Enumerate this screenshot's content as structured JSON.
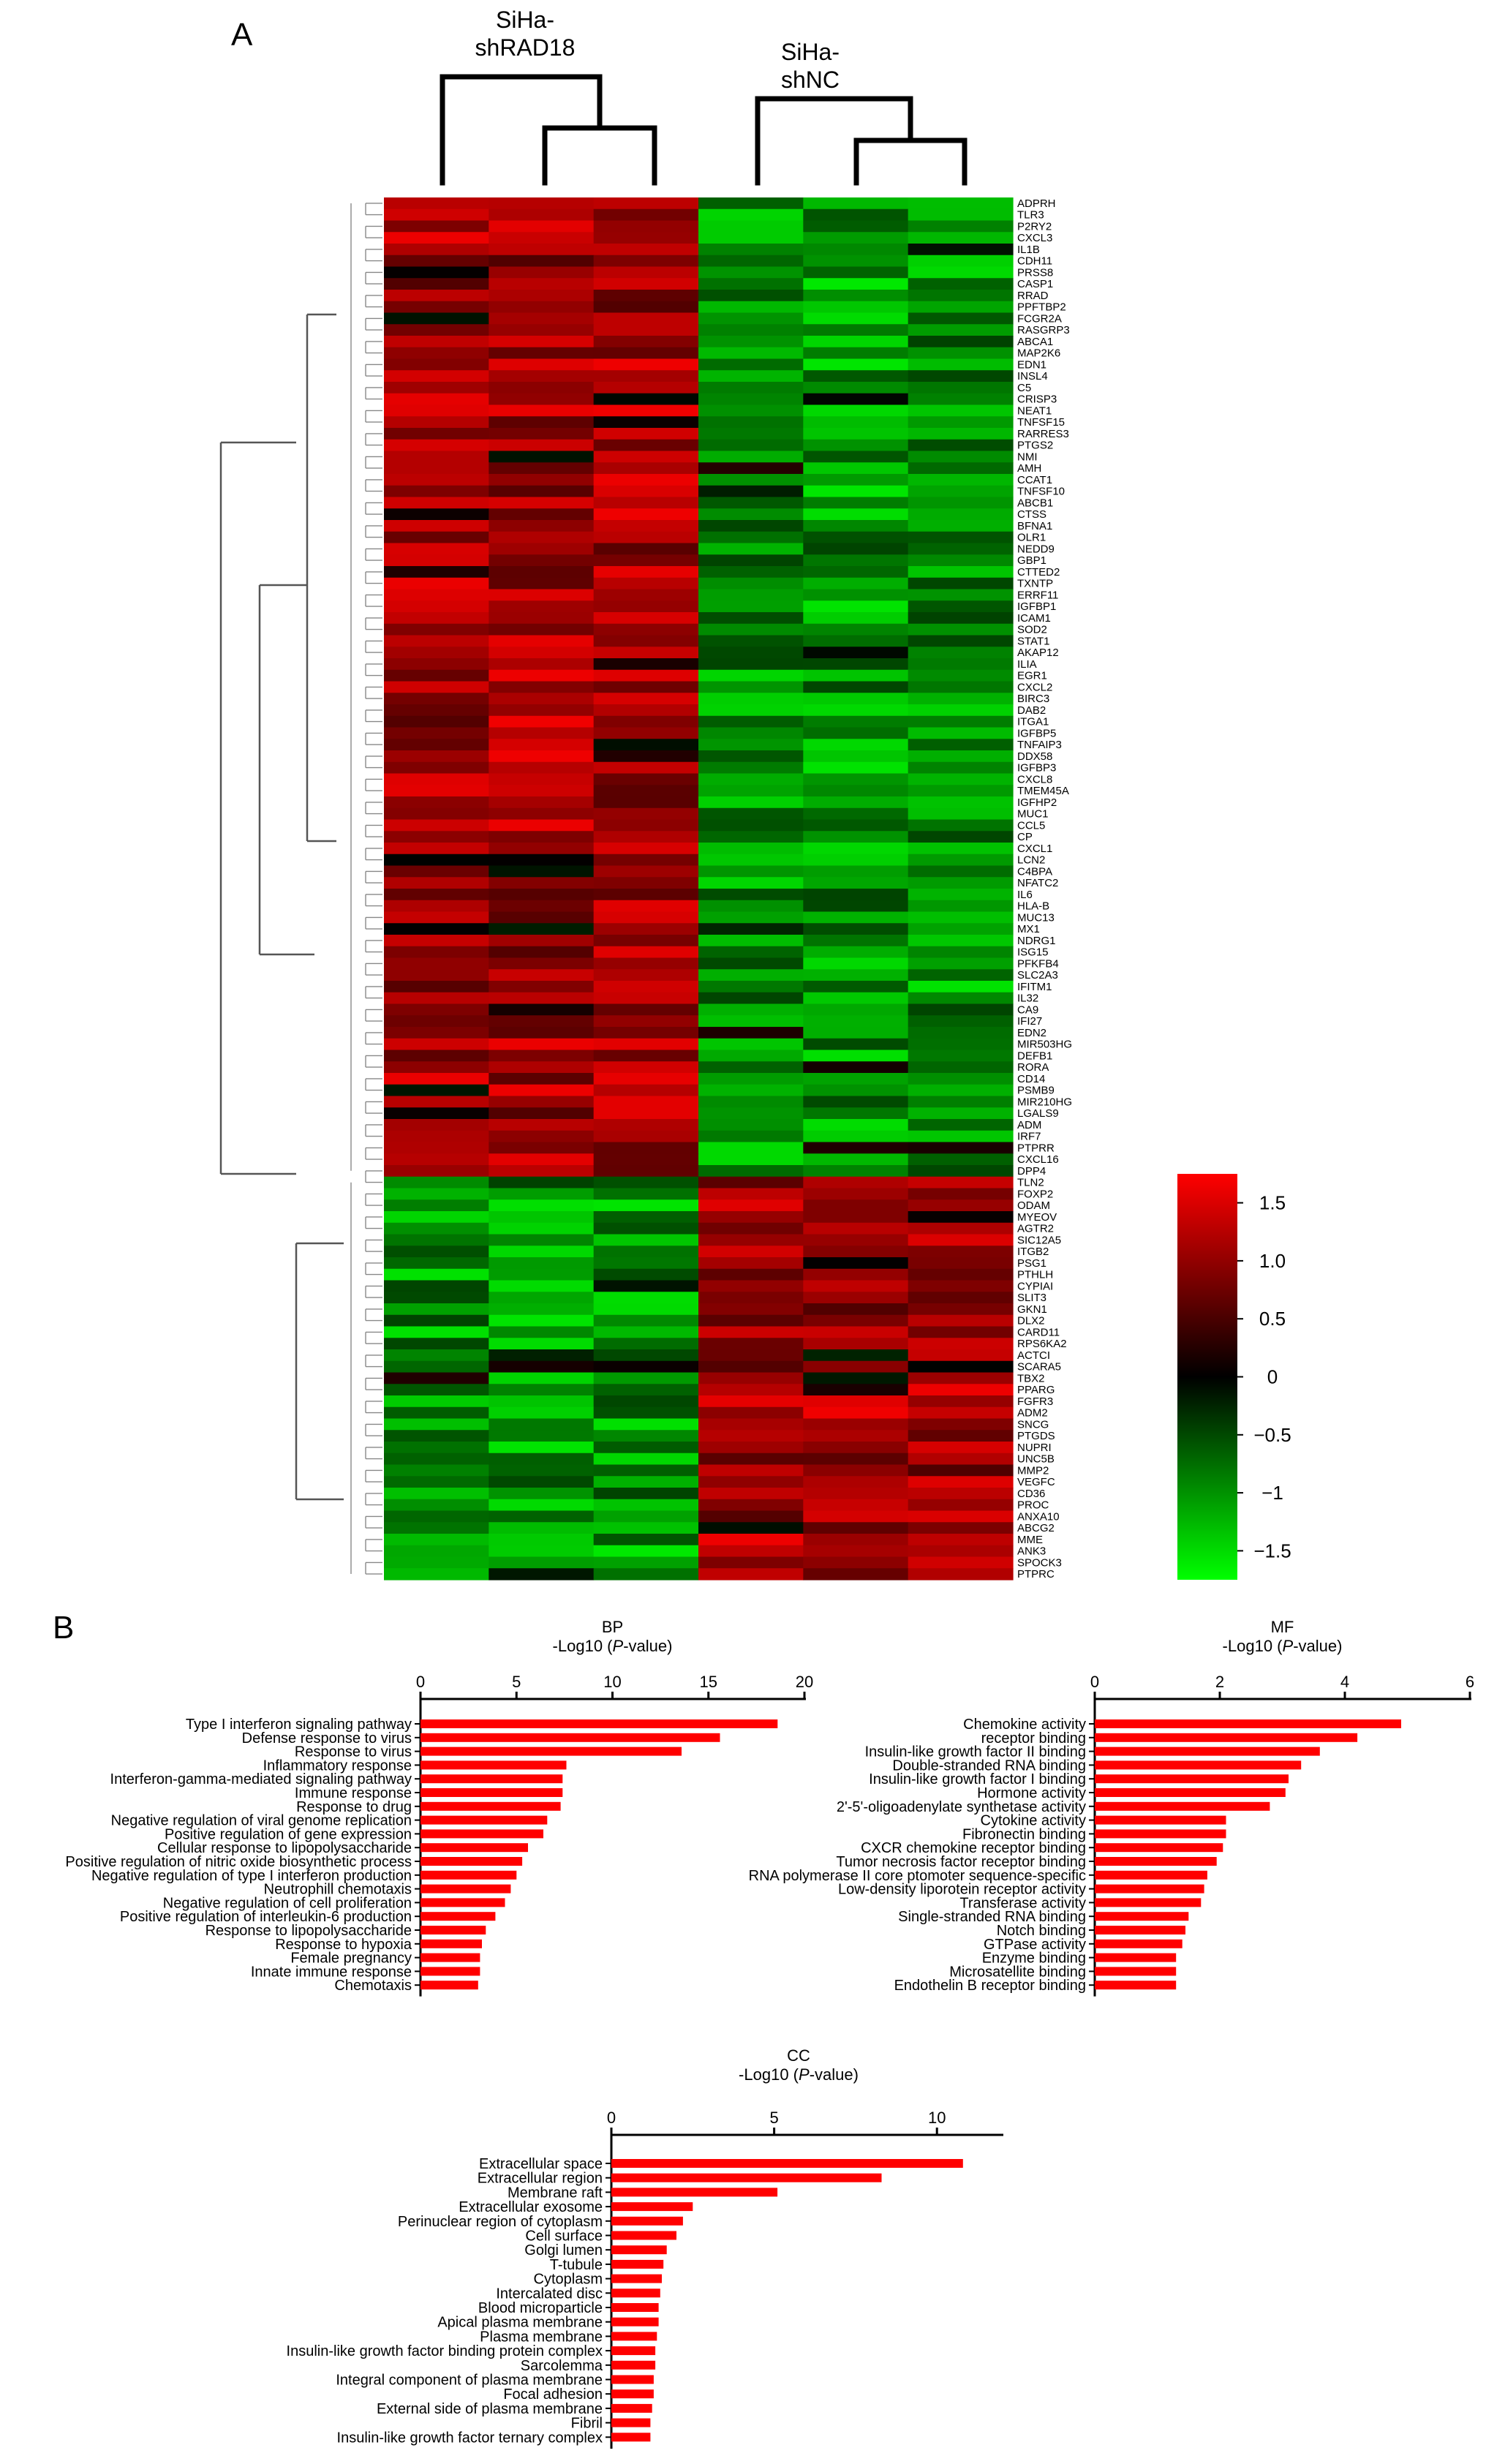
{
  "panel_a": {
    "label": "A",
    "chart_data": {
      "type": "heatmap",
      "group_labels": [
        [
          "SiHa-",
          "shRAD18"
        ],
        [
          "SiHa-",
          "shNC"
        ]
      ],
      "rows": [
        "ADPRH",
        "TLR3",
        "P2RY2",
        "CXCL3",
        "IL1B",
        "CDH11",
        "PRSS8",
        "CASP1",
        "RRAD",
        "PPFTBP2",
        "FCGR2A",
        "RASGRP3",
        "ABCA1",
        "MAP2K6",
        "EDN1",
        "INSL4",
        "C5",
        "CRISP3",
        "NEAT1",
        "TNFSF15",
        "RARRES3",
        "PTGS2",
        "NMI",
        "AMH",
        "CCAT1",
        "TNFSF10",
        "ABCB1",
        "CTSS",
        "BFNA1",
        "OLR1",
        "NEDD9",
        "GBP1",
        "CTTED2",
        "TXNTP",
        "ERRF11",
        "IGFBP1",
        "ICAM1",
        "SOD2",
        "STAT1",
        "AKAP12",
        "ILIA",
        "EGR1",
        "CXCL2",
        "BIRC3",
        "DAB2",
        "ITGA1",
        "IGFBP5",
        "TNFAIP3",
        "DDX58",
        "IGFBP3",
        "CXCL8",
        "TMEM45A",
        "IGFHP2",
        "MUC1",
        "CCL5",
        "CP",
        "CXCL1",
        "LCN2",
        "C4BPA",
        "NFATC2",
        "IL6",
        "HLA-B",
        "MUC13",
        "MX1",
        "NDRG1",
        "ISG15",
        "PFKFB4",
        "SLC2A3",
        "IFITM1",
        "IL32",
        "CA9",
        "IFI27",
        "EDN2",
        "MIR503HG",
        "DEFB1",
        "RORA",
        "CD14",
        "PSMB9",
        "MIR210HG",
        "LGALS9",
        "ADM",
        "IRF7",
        "PTPRR",
        "CXCL16",
        "DPP4",
        "TLN2",
        "FOXP2",
        "ODAM",
        "MYEOV",
        "AGTR2",
        "SIC12A5",
        "ITGB2",
        "PSG1",
        "PTHLH",
        "CYPIAI",
        "SLIT3",
        "GKN1",
        "DLX2",
        "CARD11",
        "RPS6KA2",
        "ACTCI",
        "SCARA5",
        "TBX2",
        "PPARG",
        "FGFR3",
        "ADM2",
        "SNCG",
        "PTGDS",
        "NUPRI",
        "UNC5B",
        "MMP2",
        "VEGFC",
        "CD36",
        "PROC",
        "ANXA10",
        "ABCG2",
        "MME",
        "ANK3",
        "SPOCK3",
        "PTPRC"
      ],
      "n_columns": 6,
      "n_up_rows": 85,
      "colorbar": {
        "ticks": [
          1.5,
          1.0,
          0.5,
          0,
          -0.5,
          -1,
          -1.5
        ],
        "tick_labels": [
          "1.5",
          "1.0",
          "0.5",
          "0",
          "−0.5",
          "−1",
          "−1.5"
        ],
        "min": -1.75,
        "max": 1.75,
        "colors": {
          "low": "#00ff00",
          "mid": "#000000",
          "high": "#ff0000"
        }
      }
    }
  },
  "panel_b": {
    "label": "B",
    "chart_data": [
      {
        "type": "bar",
        "orientation": "horizontal",
        "title": "BP",
        "xlabel_prefix": "-Log10 (",
        "xlabel_italic": "P",
        "xlabel_suffix": "-value)",
        "xlim": [
          0,
          20
        ],
        "xticks": [
          0,
          5,
          10,
          15,
          20
        ],
        "bar_color": "#ff0000",
        "categories": [
          "Type I interferon signaling pathway",
          "Defense response to virus",
          "Response to virus",
          "Inflammatory response",
          "Interferon-gamma-mediated signaling pathway",
          "Immune response",
          "Response to drug",
          "Negative regulation of viral genome replication",
          "Positive regulation of gene expression",
          "Cellular response to lipopolysaccharide",
          "Positive regulation of nitric oxide biosynthetic process",
          "Negative regulation of type I interferon production",
          "Neutrophill chemotaxis",
          "Negative regulation of cell proliferation",
          "Positive regulation of interleukin-6 production",
          "Response to lipopolysaccharide",
          "Response to hypoxia",
          "Female pregnancy",
          "Innate immune response",
          "Chemotaxis"
        ],
        "values": [
          18.6,
          15.6,
          13.6,
          7.6,
          7.4,
          7.4,
          7.3,
          6.6,
          6.4,
          5.6,
          5.3,
          5.0,
          4.7,
          4.4,
          3.9,
          3.4,
          3.2,
          3.1,
          3.1,
          3.0
        ]
      },
      {
        "type": "bar",
        "orientation": "horizontal",
        "title": "MF",
        "xlabel_prefix": "-Log10 (",
        "xlabel_italic": "P",
        "xlabel_suffix": "-value)",
        "xlim": [
          0,
          6
        ],
        "xticks": [
          0,
          2,
          4,
          6
        ],
        "bar_color": "#ff0000",
        "categories": [
          "Chemokine activity",
          "receptor binding",
          "Insulin-like growth factor II binding",
          "Double-stranded RNA binding",
          "Insulin-like growth factor I binding",
          "Hormone activity",
          "2'-5'-oligoadenylate synthetase activity",
          "Cytokine activity",
          "Fibronectin binding",
          "CXCR chemokine receptor binding",
          "Tumor necrosis factor receptor binding",
          "RNA polymerase II core ptomoter sequence-specific",
          "Low-density liporotein receptor activity",
          "Transferase activity",
          "Single-stranded RNA binding",
          "Notch binding",
          "GTPase activity",
          "Enzyme binding",
          "Microsatellite binding",
          "Endothelin B receptor binding"
        ],
        "values": [
          4.9,
          4.2,
          3.6,
          3.3,
          3.1,
          3.05,
          2.8,
          2.1,
          2.1,
          2.05,
          1.95,
          1.8,
          1.75,
          1.7,
          1.5,
          1.45,
          1.4,
          1.3,
          1.3,
          1.3
        ]
      },
      {
        "type": "bar",
        "orientation": "horizontal",
        "title": "CC",
        "xlabel_prefix": "-Log10 (",
        "xlabel_italic": "P",
        "xlabel_suffix": "-value)",
        "xlim": [
          0,
          11.5
        ],
        "xticks": [
          0,
          5,
          10
        ],
        "bar_color": "#ff0000",
        "categories": [
          "Extracellular space",
          "Extracellular region",
          "Membrane raft",
          "Extracellular exosome",
          "Perinuclear region of cytoplasm",
          "Cell surface",
          "Golgi lumen",
          "T-tubule",
          "Cytoplasm",
          "Intercalated disc",
          "Blood microparticle",
          "Apical plasma membrane",
          "Plasma membrane",
          "Insulin-like growth factor binding protein complex",
          "Sarcolemma",
          "Integral component of plasma membrane",
          "Focal adhesion",
          "External side of plasma membrane",
          "Fibril",
          "Insulin-like growth factor ternary complex"
        ],
        "values": [
          10.8,
          8.3,
          5.1,
          2.5,
          2.2,
          2.0,
          1.7,
          1.6,
          1.55,
          1.5,
          1.45,
          1.45,
          1.4,
          1.35,
          1.35,
          1.3,
          1.3,
          1.25,
          1.2,
          1.2
        ]
      }
    ]
  }
}
